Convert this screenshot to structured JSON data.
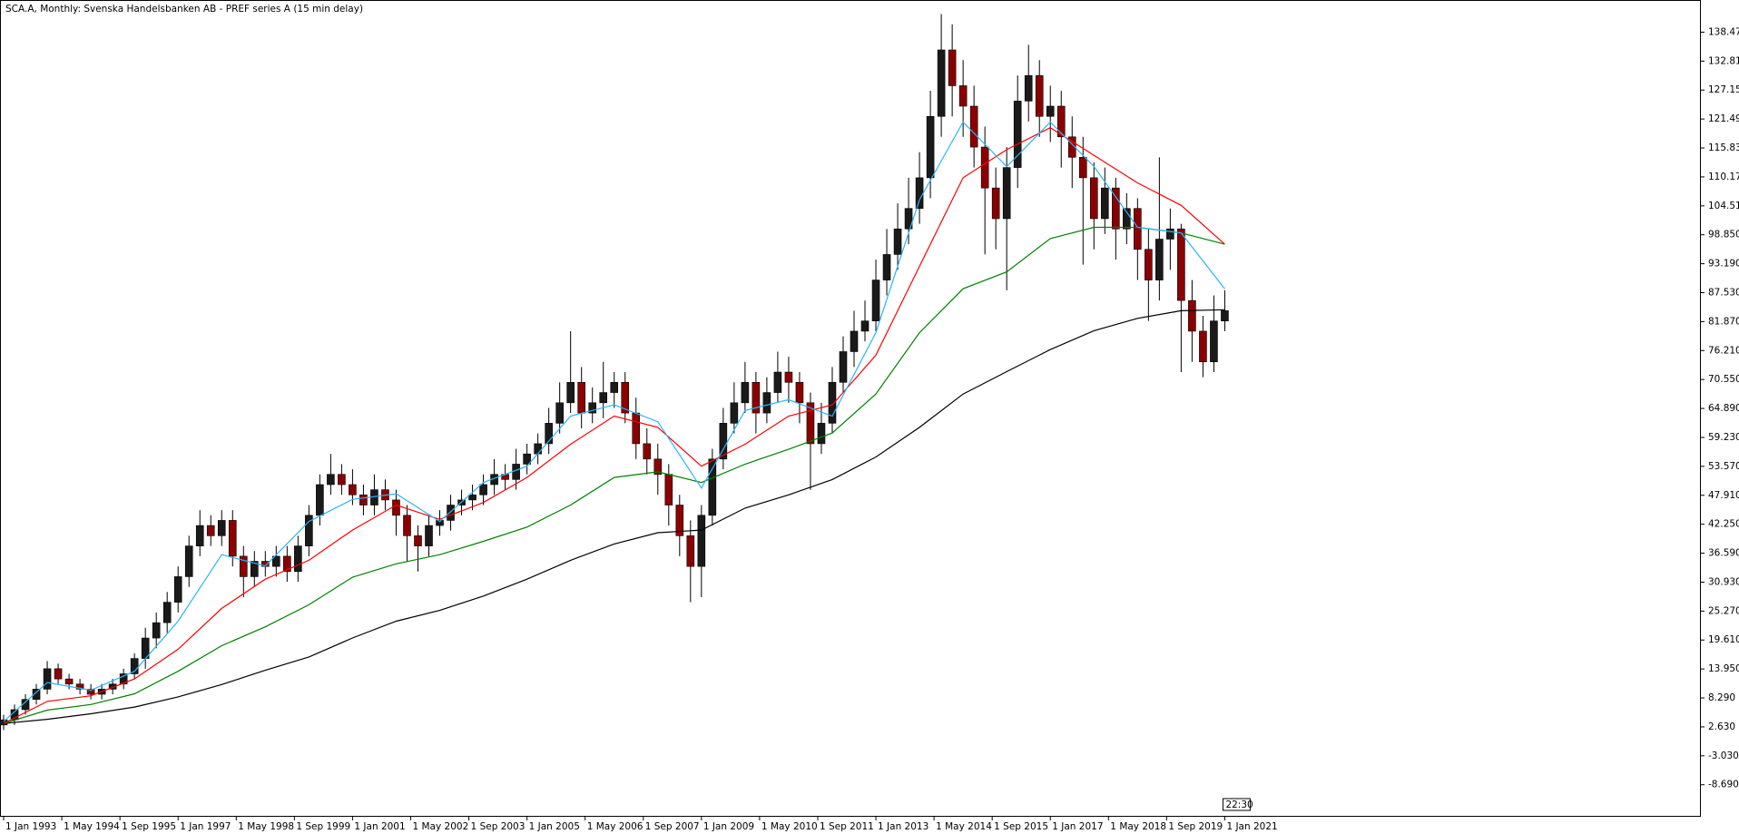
{
  "chart_data": {
    "type": "candlestick",
    "title": "SCA.A, Monthly:  Svenska Handelsbanken AB - PREF series A (15 min delay)",
    "time_label": "22:30",
    "up_color": "#1a1a1a",
    "down_color": "#8b0000",
    "xlim": [
      "1992-12",
      "2031-12"
    ],
    "ylim": [
      -14.95,
      144.76
    ],
    "xticks": [
      {
        "value": "1993-01",
        "label": "1 Jan 1993"
      },
      {
        "value": "1994-05",
        "label": "1 May 1994"
      },
      {
        "value": "1995-09",
        "label": "1 Sep 1995"
      },
      {
        "value": "1997-01",
        "label": "1 Jan 1997"
      },
      {
        "value": "1998-05",
        "label": "1 May 1998"
      },
      {
        "value": "1999-09",
        "label": "1 Sep 1999"
      },
      {
        "value": "2001-01",
        "label": "1 Jan 2001"
      },
      {
        "value": "2002-05",
        "label": "1 May 2002"
      },
      {
        "value": "2003-09",
        "label": "1 Sep 2003"
      },
      {
        "value": "2005-01",
        "label": "1 Jan 2005"
      },
      {
        "value": "2006-05",
        "label": "1 May 2006"
      },
      {
        "value": "2007-09",
        "label": "1 Sep 2007"
      },
      {
        "value": "2009-01",
        "label": "1 Jan 2009"
      },
      {
        "value": "2010-05",
        "label": "1 May 2010"
      },
      {
        "value": "2011-09",
        "label": "1 Sep 2011"
      },
      {
        "value": "2013-01",
        "label": "1 Jan 2013"
      },
      {
        "value": "2014-05",
        "label": "1 May 2014"
      },
      {
        "value": "2015-09",
        "label": "1 Sep 2015"
      },
      {
        "value": "2017-01",
        "label": "1 Jan 2017"
      },
      {
        "value": "2018-05",
        "label": "1 May 2018"
      },
      {
        "value": "2019-09",
        "label": "1 Sep 2019"
      },
      {
        "value": "2021-01",
        "label": "1 Jan 2021"
      }
    ],
    "yticks": [
      {
        "value": 138.47,
        "label": "138.470"
      },
      {
        "value": 132.81,
        "label": "132.810"
      },
      {
        "value": 127.15,
        "label": "127.150"
      },
      {
        "value": 121.49,
        "label": "121.490"
      },
      {
        "value": 115.83,
        "label": "115.830"
      },
      {
        "value": 110.17,
        "label": "110.170"
      },
      {
        "value": 104.51,
        "label": "104.510"
      },
      {
        "value": 98.85,
        "label": "98.850"
      },
      {
        "value": 93.19,
        "label": "93.190"
      },
      {
        "value": 87.53,
        "label": "87.530"
      },
      {
        "value": 81.87,
        "label": "81.870"
      },
      {
        "value": 76.21,
        "label": "76.210"
      },
      {
        "value": 70.55,
        "label": "70.550"
      },
      {
        "value": 64.89,
        "label": "64.890"
      },
      {
        "value": 59.23,
        "label": "59.230"
      },
      {
        "value": 53.57,
        "label": "53.570"
      },
      {
        "value": 47.91,
        "label": "47.910"
      },
      {
        "value": 42.25,
        "label": "42.250"
      },
      {
        "value": 36.59,
        "label": "36.590"
      },
      {
        "value": 30.93,
        "label": "30.930"
      },
      {
        "value": 25.27,
        "label": "25.270"
      },
      {
        "value": 19.61,
        "label": "19.610"
      },
      {
        "value": 13.95,
        "label": "13.950"
      },
      {
        "value": 8.29,
        "label": "8.290"
      },
      {
        "value": 2.63,
        "label": "2.630"
      },
      {
        "value": -3.03,
        "label": "-3.030"
      },
      {
        "value": -8.69,
        "label": "-8.690"
      }
    ],
    "candles": {
      "x": [
        "1993-01",
        "1993-04",
        "1993-07",
        "1993-10",
        "1994-01",
        "1994-04",
        "1994-07",
        "1994-10",
        "1995-01",
        "1995-04",
        "1995-07",
        "1995-10",
        "1996-01",
        "1996-04",
        "1996-07",
        "1996-10",
        "1997-01",
        "1997-04",
        "1997-07",
        "1997-10",
        "1998-01",
        "1998-04",
        "1998-07",
        "1998-10",
        "1999-01",
        "1999-04",
        "1999-07",
        "1999-10",
        "2000-01",
        "2000-04",
        "2000-07",
        "2000-10",
        "2001-01",
        "2001-04",
        "2001-07",
        "2001-10",
        "2002-01",
        "2002-04",
        "2002-07",
        "2002-10",
        "2003-01",
        "2003-04",
        "2003-07",
        "2003-10",
        "2004-01",
        "2004-04",
        "2004-07",
        "2004-10",
        "2005-01",
        "2005-04",
        "2005-07",
        "2005-10",
        "2006-01",
        "2006-04",
        "2006-07",
        "2006-10",
        "2007-01",
        "2007-04",
        "2007-07",
        "2007-10",
        "2008-01",
        "2008-04",
        "2008-07",
        "2008-10",
        "2009-01",
        "2009-04",
        "2009-07",
        "2009-10",
        "2010-01",
        "2010-04",
        "2010-07",
        "2010-10",
        "2011-01",
        "2011-04",
        "2011-07",
        "2011-10",
        "2012-01",
        "2012-04",
        "2012-07",
        "2012-10",
        "2013-01",
        "2013-04",
        "2013-07",
        "2013-10",
        "2014-01",
        "2014-04",
        "2014-07",
        "2014-10",
        "2015-01",
        "2015-04",
        "2015-07",
        "2015-10",
        "2016-01",
        "2016-04",
        "2016-07",
        "2016-10",
        "2017-01",
        "2017-04",
        "2017-07",
        "2017-10",
        "2018-01",
        "2018-04",
        "2018-07",
        "2018-10",
        "2019-01",
        "2019-04",
        "2019-07",
        "2019-10",
        "2020-01",
        "2020-04",
        "2020-07",
        "2020-10",
        "2021-01"
      ],
      "open": [
        3,
        4,
        6,
        8,
        10,
        14,
        12,
        11,
        10,
        9,
        10,
        11,
        13,
        16,
        20,
        23,
        27,
        32,
        38,
        42,
        40,
        43,
        36,
        32,
        35,
        34,
        36,
        33,
        38,
        44,
        50,
        52,
        50,
        48,
        46,
        49,
        47,
        44,
        40,
        38,
        42,
        43,
        46,
        47,
        48,
        50,
        52,
        51,
        54,
        56,
        58,
        62,
        66,
        70,
        64,
        66,
        68,
        70,
        64,
        58,
        55,
        52,
        46,
        40,
        34,
        44,
        55,
        62,
        66,
        70,
        64,
        68,
        72,
        70,
        66,
        58,
        62,
        70,
        76,
        80,
        82,
        90,
        95,
        100,
        104,
        110,
        122,
        135,
        128,
        124,
        116,
        108,
        102,
        112,
        125,
        130,
        122,
        124,
        118,
        114,
        110,
        102,
        108,
        100,
        104,
        96,
        90,
        98,
        100,
        86,
        80,
        74,
        82
      ],
      "high": [
        5,
        7,
        9,
        11,
        15.5,
        15,
        13,
        12,
        11,
        11,
        12,
        14,
        17,
        22,
        25,
        29,
        34,
        40,
        45,
        44,
        45,
        45,
        38,
        37,
        37,
        38,
        38,
        40,
        46,
        52,
        56,
        54,
        53,
        50,
        52,
        51,
        49,
        46,
        42,
        44,
        45,
        48,
        49,
        50,
        52,
        55,
        54,
        57,
        58,
        60,
        65,
        70,
        80,
        73,
        69,
        74,
        72,
        72,
        67,
        61,
        58,
        54,
        48,
        43,
        46,
        57,
        65,
        70,
        74,
        72,
        71,
        76,
        75,
        72,
        68,
        66,
        73,
        79,
        84,
        86,
        94,
        100,
        105,
        110,
        115,
        127,
        142,
        140,
        133,
        128,
        120,
        112,
        116,
        130,
        136,
        133,
        128,
        127,
        122,
        118,
        113,
        112,
        110,
        107,
        106,
        100,
        114,
        104,
        101,
        90,
        83,
        87,
        88
      ],
      "low": [
        2,
        3,
        5,
        7,
        9,
        11,
        10,
        9,
        8,
        8,
        9,
        10,
        12,
        14,
        18,
        21,
        25,
        30,
        36,
        38,
        38,
        34,
        28,
        30,
        32,
        32,
        31,
        31,
        36,
        42,
        48,
        48,
        46,
        44,
        44,
        45,
        40,
        35,
        33,
        36,
        40,
        41,
        44,
        45,
        46,
        48,
        49,
        49,
        52,
        54,
        56,
        60,
        64,
        61,
        62,
        63,
        65,
        62,
        55,
        52,
        48,
        42,
        36,
        27,
        28,
        42,
        53,
        60,
        64,
        60,
        62,
        66,
        66,
        62,
        49,
        56,
        60,
        68,
        73,
        78,
        80,
        87,
        92,
        97,
        101,
        106,
        118,
        122,
        118,
        112,
        95,
        96,
        88,
        108,
        121,
        118,
        117,
        112,
        108,
        93,
        96,
        99,
        94,
        97,
        90,
        82,
        86,
        92,
        72,
        74,
        71,
        72,
        80
      ],
      "close": [
        4,
        6,
        8,
        10,
        14,
        12,
        11,
        10,
        9,
        10,
        11,
        13,
        16,
        20,
        23,
        27,
        32,
        38,
        42,
        40,
        43,
        36,
        32,
        35,
        34,
        36,
        33,
        38,
        44,
        50,
        52,
        50,
        48,
        46,
        49,
        47,
        44,
        40,
        38,
        42,
        43,
        46,
        47,
        48,
        50,
        52,
        51,
        54,
        56,
        58,
        62,
        66,
        70,
        64,
        66,
        68,
        70,
        64,
        58,
        55,
        52,
        46,
        40,
        34,
        44,
        55,
        62,
        66,
        70,
        64,
        68,
        72,
        70,
        66,
        58,
        62,
        70,
        76,
        80,
        82,
        90,
        95,
        100,
        104,
        110,
        122,
        135,
        128,
        124,
        116,
        108,
        102,
        112,
        125,
        130,
        122,
        124,
        118,
        114,
        110,
        102,
        108,
        100,
        104,
        96,
        90,
        98,
        100,
        86,
        80,
        74,
        82,
        84
      ]
    },
    "ma_x": [
      "1993-01",
      "1994-01",
      "1995-01",
      "1996-01",
      "1997-01",
      "1998-01",
      "1999-01",
      "2000-01",
      "2001-01",
      "2002-01",
      "2003-01",
      "2004-01",
      "2005-01",
      "2006-01",
      "2007-01",
      "2008-01",
      "2009-01",
      "2010-01",
      "2011-01",
      "2012-01",
      "2013-01",
      "2014-01",
      "2015-01",
      "2016-01",
      "2017-01",
      "2018-01",
      "2019-01",
      "2020-01",
      "2021-01"
    ],
    "series": [
      {
        "color": "#000000",
        "values": [
          3.3,
          4.1,
          5.2,
          6.5,
          8.5,
          10.9,
          13.7,
          16.3,
          20,
          23.3,
          25.4,
          28.2,
          31.5,
          35.2,
          38.4,
          40.6,
          41.1,
          45.4,
          48,
          51,
          55.4,
          61.2,
          67.7,
          72.1,
          76.4,
          80.1,
          82.5,
          84,
          84.2
        ]
      },
      {
        "color": "#008000",
        "values": [
          3.3,
          5.9,
          7,
          9.1,
          13.5,
          18.5,
          22.2,
          26.5,
          31.9,
          34.5,
          36.3,
          38.9,
          41.7,
          46,
          51.4,
          52.5,
          50.4,
          54,
          56.9,
          60.1,
          67.7,
          79.7,
          88.3,
          91.6,
          98.1,
          100.3,
          100.3,
          99.2,
          97
        ]
      },
      {
        "color": "#ff0000",
        "values": [
          3.3,
          7.6,
          8.7,
          12,
          17.8,
          25.8,
          31.5,
          35.2,
          41.1,
          46,
          43.2,
          46.5,
          51.4,
          57.9,
          63.4,
          61.2,
          53.6,
          57.9,
          63.4,
          65.6,
          75.3,
          92.7,
          110,
          115.5,
          119.8,
          114.4,
          109,
          104.6,
          97
        ]
      },
      {
        "color": "#29b6f6",
        "values": [
          3.7,
          11.3,
          9.8,
          13.5,
          23.3,
          36.3,
          34.1,
          42.8,
          47.1,
          48.2,
          42.8,
          50.4,
          53.6,
          63.4,
          65.6,
          62.3,
          49.3,
          64.5,
          66.6,
          63.4,
          79.7,
          105.7,
          120.9,
          112.2,
          120.9,
          112.2,
          100.3,
          99.2,
          88.3
        ]
      }
    ]
  }
}
